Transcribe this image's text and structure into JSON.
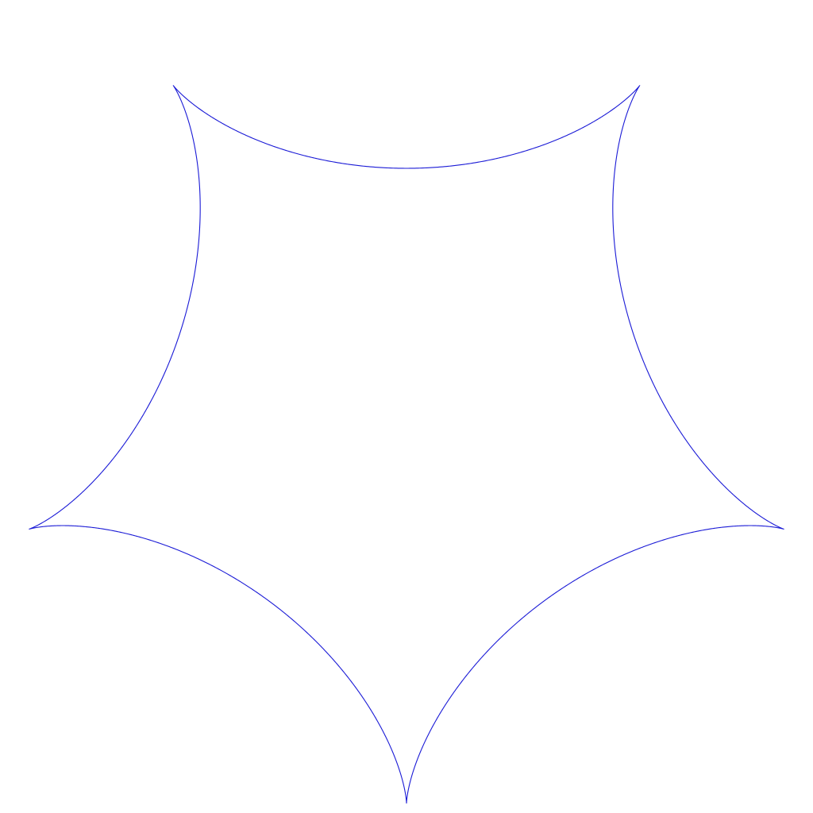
{
  "figure": {
    "shape": "hypocycloid",
    "cusps": 5,
    "line_color": "#1a1ad6",
    "background_color": "#ffffff"
  }
}
